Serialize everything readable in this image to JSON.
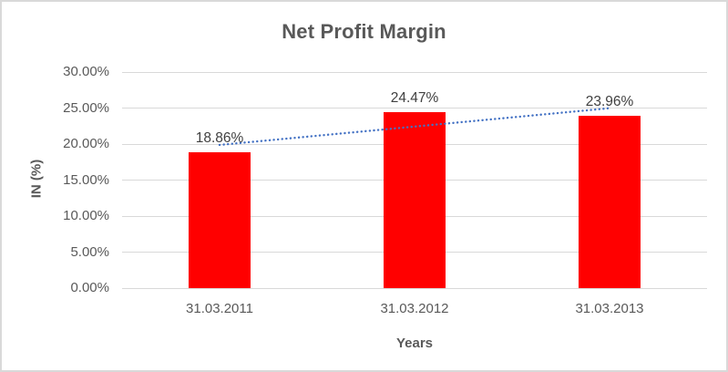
{
  "chart_data": {
    "type": "bar",
    "title": "Net Profit Margin",
    "xlabel": "Years",
    "ylabel": "IN (%)",
    "categories": [
      "31.03.2011",
      "31.03.2012",
      "31.03.2013"
    ],
    "values": [
      18.86,
      24.47,
      23.96
    ],
    "value_labels": [
      "18.86%",
      "24.47%",
      "23.96%"
    ],
    "ylim": [
      0,
      30
    ],
    "yticks": [
      {
        "value": 0,
        "label": "0.00%"
      },
      {
        "value": 5,
        "label": "5.00%"
      },
      {
        "value": 10,
        "label": "10.00%"
      },
      {
        "value": 15,
        "label": "15.00%"
      },
      {
        "value": 20,
        "label": "20.00%"
      },
      {
        "value": 25,
        "label": "25.00%"
      },
      {
        "value": 30,
        "label": "30.00%"
      }
    ],
    "grid": true,
    "legend": "none",
    "trendline": {
      "type": "linear",
      "style": "dotted"
    },
    "colors": {
      "bar": "#FF0000",
      "trendline": "#4472C4",
      "title": "#595959",
      "axis_text": "#595959",
      "data_label": "#404040",
      "gridline": "#D9D9D9",
      "border": "#D9D9D9",
      "background": "#FFFFFF"
    }
  }
}
